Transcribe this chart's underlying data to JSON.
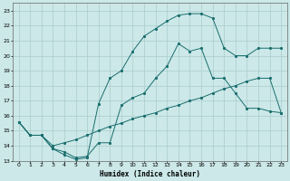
{
  "title": "",
  "xlabel": "Humidex (Indice chaleur)",
  "background_color": "#cce8e8",
  "grid_color": "#aacccc",
  "line_color": "#1a6e6e",
  "xlim": [
    -0.5,
    23.5
  ],
  "ylim": [
    13,
    23.5
  ],
  "xticks": [
    0,
    1,
    2,
    3,
    4,
    5,
    6,
    7,
    8,
    9,
    10,
    11,
    12,
    13,
    14,
    15,
    16,
    17,
    18,
    19,
    20,
    21,
    22,
    23
  ],
  "yticks": [
    13,
    14,
    15,
    16,
    17,
    18,
    19,
    20,
    21,
    22,
    23
  ],
  "line_top_x": [
    0,
    1,
    2,
    3,
    4,
    5,
    6,
    7,
    8,
    9,
    10,
    11,
    12,
    13,
    14,
    15,
    16,
    17,
    18,
    19,
    20,
    21,
    22,
    23
  ],
  "line_top_y": [
    15.6,
    14.7,
    14.7,
    13.8,
    13.4,
    13.1,
    13.2,
    16.8,
    18.5,
    19.0,
    20.3,
    21.3,
    21.8,
    22.3,
    22.7,
    22.8,
    22.8,
    22.5,
    20.5,
    20.0,
    20.0,
    20.5,
    20.5,
    20.5
  ],
  "line_mid_x": [
    0,
    1,
    2,
    3,
    4,
    5,
    6,
    7,
    8,
    9,
    10,
    11,
    12,
    13,
    14,
    15,
    16,
    17,
    18,
    19,
    20,
    21,
    22,
    23
  ],
  "line_mid_y": [
    15.6,
    14.7,
    14.7,
    13.8,
    13.6,
    13.2,
    13.3,
    14.2,
    14.2,
    16.7,
    17.2,
    17.5,
    18.5,
    19.3,
    20.8,
    20.3,
    20.5,
    18.5,
    18.5,
    17.5,
    16.5,
    16.5,
    16.3,
    16.2
  ],
  "line_bot_x": [
    0,
    1,
    2,
    3,
    4,
    5,
    6,
    7,
    8,
    9,
    10,
    11,
    12,
    13,
    14,
    15,
    16,
    17,
    18,
    19,
    20,
    21,
    22,
    23
  ],
  "line_bot_y": [
    15.6,
    14.7,
    14.7,
    14.0,
    14.2,
    14.4,
    14.7,
    15.0,
    15.3,
    15.5,
    15.8,
    16.0,
    16.2,
    16.5,
    16.7,
    17.0,
    17.2,
    17.5,
    17.8,
    18.0,
    18.3,
    18.5,
    18.5,
    16.2
  ]
}
